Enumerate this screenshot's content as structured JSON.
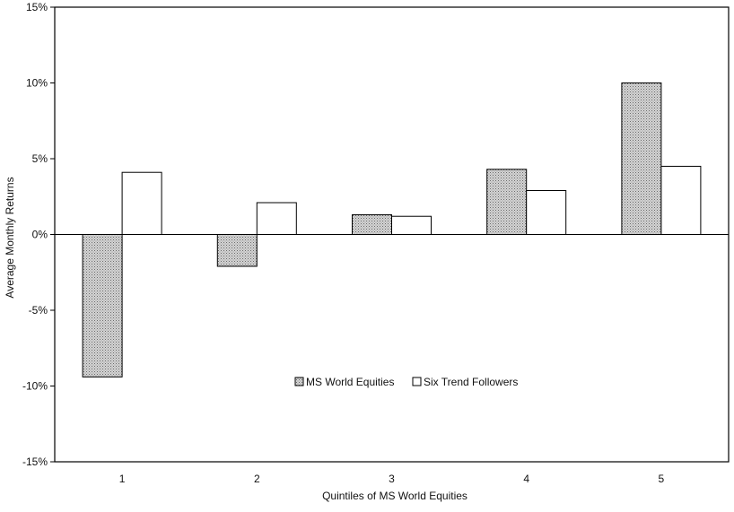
{
  "chart_data": {
    "type": "bar",
    "title": "",
    "xlabel": "Quintiles of MS World Equities",
    "ylabel": "Average Monthly Returns",
    "categories": [
      "1",
      "2",
      "3",
      "4",
      "5"
    ],
    "series": [
      {
        "name": "MS World Equities",
        "values": [
          -9.4,
          -2.1,
          1.3,
          4.3,
          10.0
        ],
        "color": "#bdbdbd",
        "pattern": "dotted-gray"
      },
      {
        "name": "Six Trend Followers",
        "values": [
          4.1,
          2.1,
          1.2,
          2.9,
          4.5
        ],
        "color": "#ffffff",
        "pattern": "none"
      }
    ],
    "ylim": [
      -15,
      15
    ],
    "yticks": [
      -15,
      -10,
      -5,
      0,
      5,
      10,
      15
    ],
    "ytick_labels": [
      "-15%",
      "-10%",
      "-5%",
      "0%",
      "5%",
      "10%",
      "15%"
    ],
    "grid": false,
    "legend_position": "center-bottom"
  }
}
